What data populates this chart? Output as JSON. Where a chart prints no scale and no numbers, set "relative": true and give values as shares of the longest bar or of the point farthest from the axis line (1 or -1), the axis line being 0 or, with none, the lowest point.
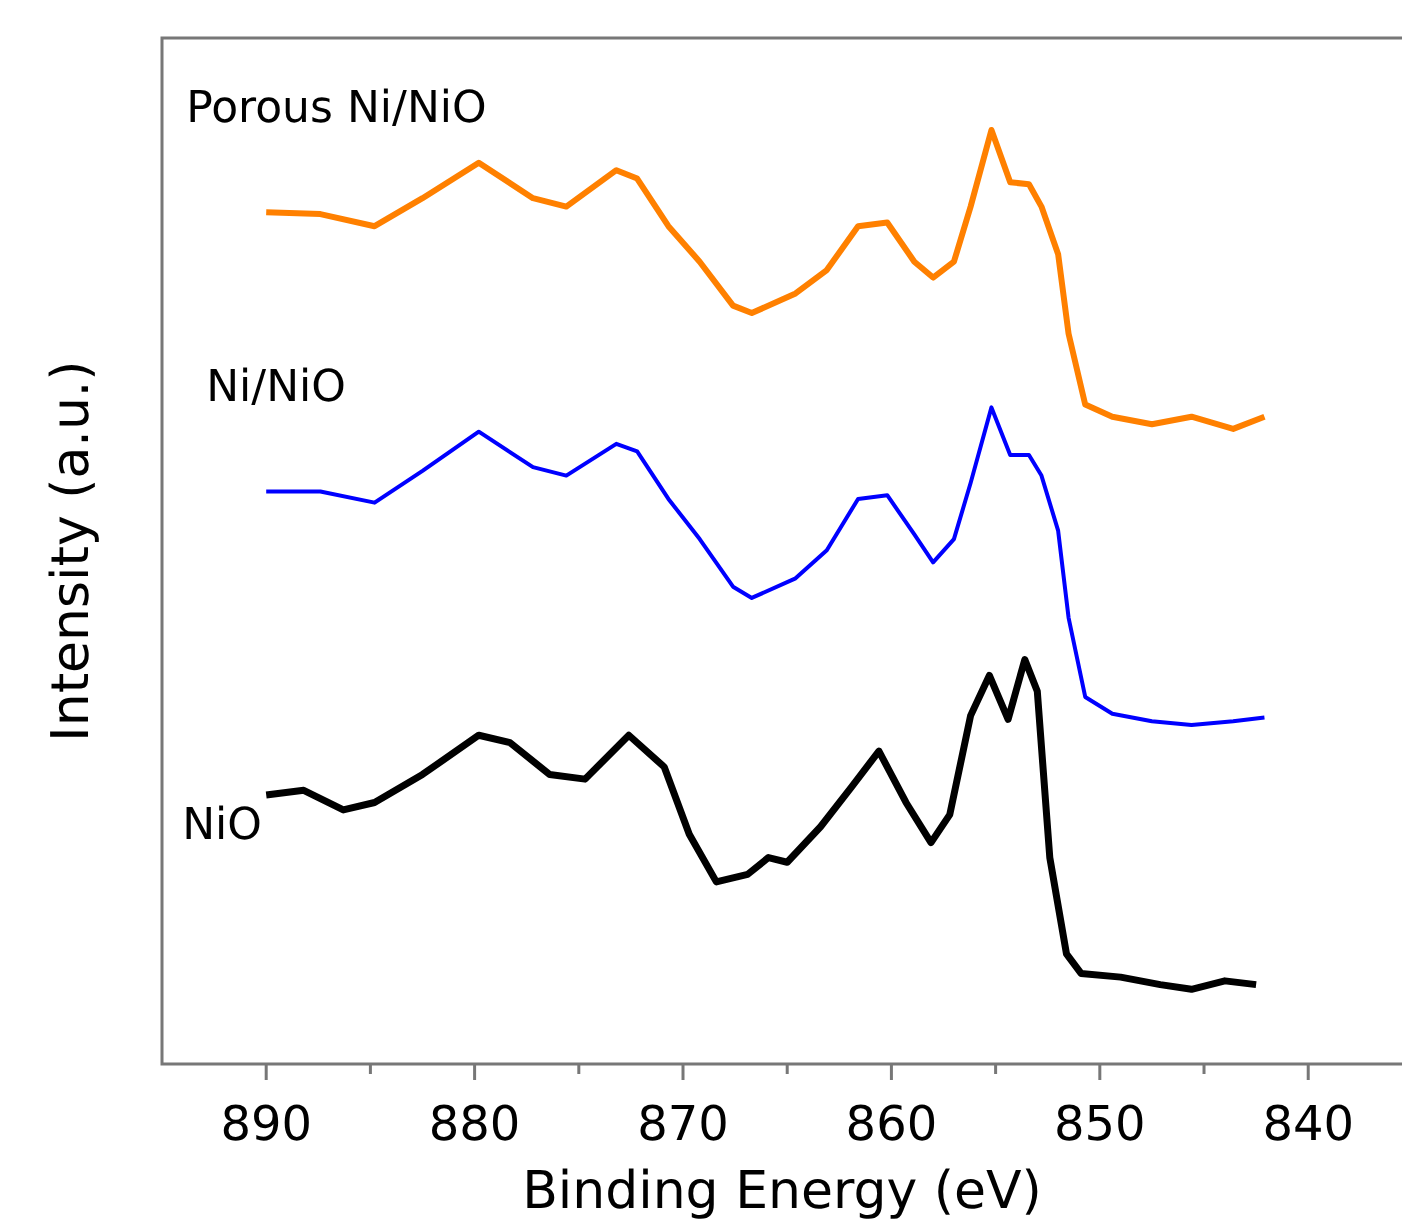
{
  "chart_data": {
    "type": "line",
    "xlabel": "Binding Energy (eV)",
    "ylabel": "Intensity (a.u.)",
    "relative": true,
    "xlim": [
      895,
      835.5
    ],
    "xticks": [
      890,
      {
        "value": 885,
        "label": null
      },
      880,
      {
        "value": 875,
        "label": null
      },
      870,
      {
        "value": 865,
        "label": null
      },
      860,
      {
        "value": 855,
        "label": null
      },
      850,
      {
        "value": 845,
        "label": null
      },
      840
    ],
    "grid": false,
    "series": [
      {
        "name": "Porous Ni/NiO",
        "color": "#ff8000",
        "x": [
          890,
          887.4,
          884.8,
          882.5,
          879.8,
          877.2,
          875.6,
          873.2,
          872.2,
          870.7,
          869.2,
          867.6,
          866.7,
          864.6,
          863.1,
          861.6,
          860.2,
          858.9,
          858,
          857,
          856.2,
          855.2,
          854.3,
          853.4,
          852.8,
          852,
          851.5,
          850.7,
          849.4,
          847.5,
          845.6,
          843.6,
          842.1
        ],
        "values": [
          0.912,
          0.91,
          0.897,
          0.927,
          0.965,
          0.927,
          0.918,
          0.957,
          0.948,
          0.897,
          0.859,
          0.812,
          0.804,
          0.825,
          0.85,
          0.897,
          0.901,
          0.859,
          0.842,
          0.859,
          0.918,
          1,
          0.944,
          0.942,
          0.918,
          0.867,
          0.782,
          0.706,
          0.693,
          0.685,
          0.693,
          0.68,
          0.693
        ]
      },
      {
        "name": "Ni/NiO",
        "color": "#0000ff",
        "x": [
          890,
          887.4,
          884.8,
          882.5,
          879.8,
          877.2,
          875.6,
          873.2,
          872.2,
          870.7,
          869.2,
          867.6,
          866.7,
          864.6,
          863.1,
          861.6,
          860.2,
          858.9,
          858,
          857,
          856.2,
          855.2,
          854.3,
          853.4,
          852.8,
          852,
          851.5,
          850.7,
          849.4,
          847.5,
          845.6,
          843.6,
          842.1
        ],
        "values": [
          0.613,
          0.613,
          0.601,
          0.635,
          0.677,
          0.639,
          0.63,
          0.664,
          0.656,
          0.605,
          0.562,
          0.511,
          0.499,
          0.52,
          0.55,
          0.605,
          0.609,
          0.567,
          0.537,
          0.562,
          0.622,
          0.703,
          0.652,
          0.652,
          0.63,
          0.571,
          0.478,
          0.393,
          0.375,
          0.367,
          0.363,
          0.367,
          0.371
        ]
      },
      {
        "name": "NiO",
        "color": "#000000",
        "x": [
          890,
          888.2,
          886.3,
          884.8,
          882.5,
          879.8,
          878.3,
          876.4,
          874.7,
          872.6,
          870.9,
          869.7,
          868.4,
          866.9,
          865.9,
          865,
          863.4,
          861.9,
          860.6,
          859.3,
          858.1,
          857.2,
          856.2,
          855.3,
          854.4,
          853.6,
          853,
          852.4,
          851.6,
          850.9,
          849,
          847.1,
          845.6,
          844,
          842.5
        ],
        "values": [
          0.288,
          0.293,
          0.272,
          0.28,
          0.31,
          0.352,
          0.344,
          0.31,
          0.305,
          0.352,
          0.318,
          0.246,
          0.195,
          0.203,
          0.221,
          0.216,
          0.254,
          0.297,
          0.335,
          0.28,
          0.237,
          0.267,
          0.373,
          0.416,
          0.369,
          0.433,
          0.399,
          0.221,
          0.118,
          0.097,
          0.093,
          0.085,
          0.08,
          0.089,
          0.085
        ]
      }
    ]
  }
}
